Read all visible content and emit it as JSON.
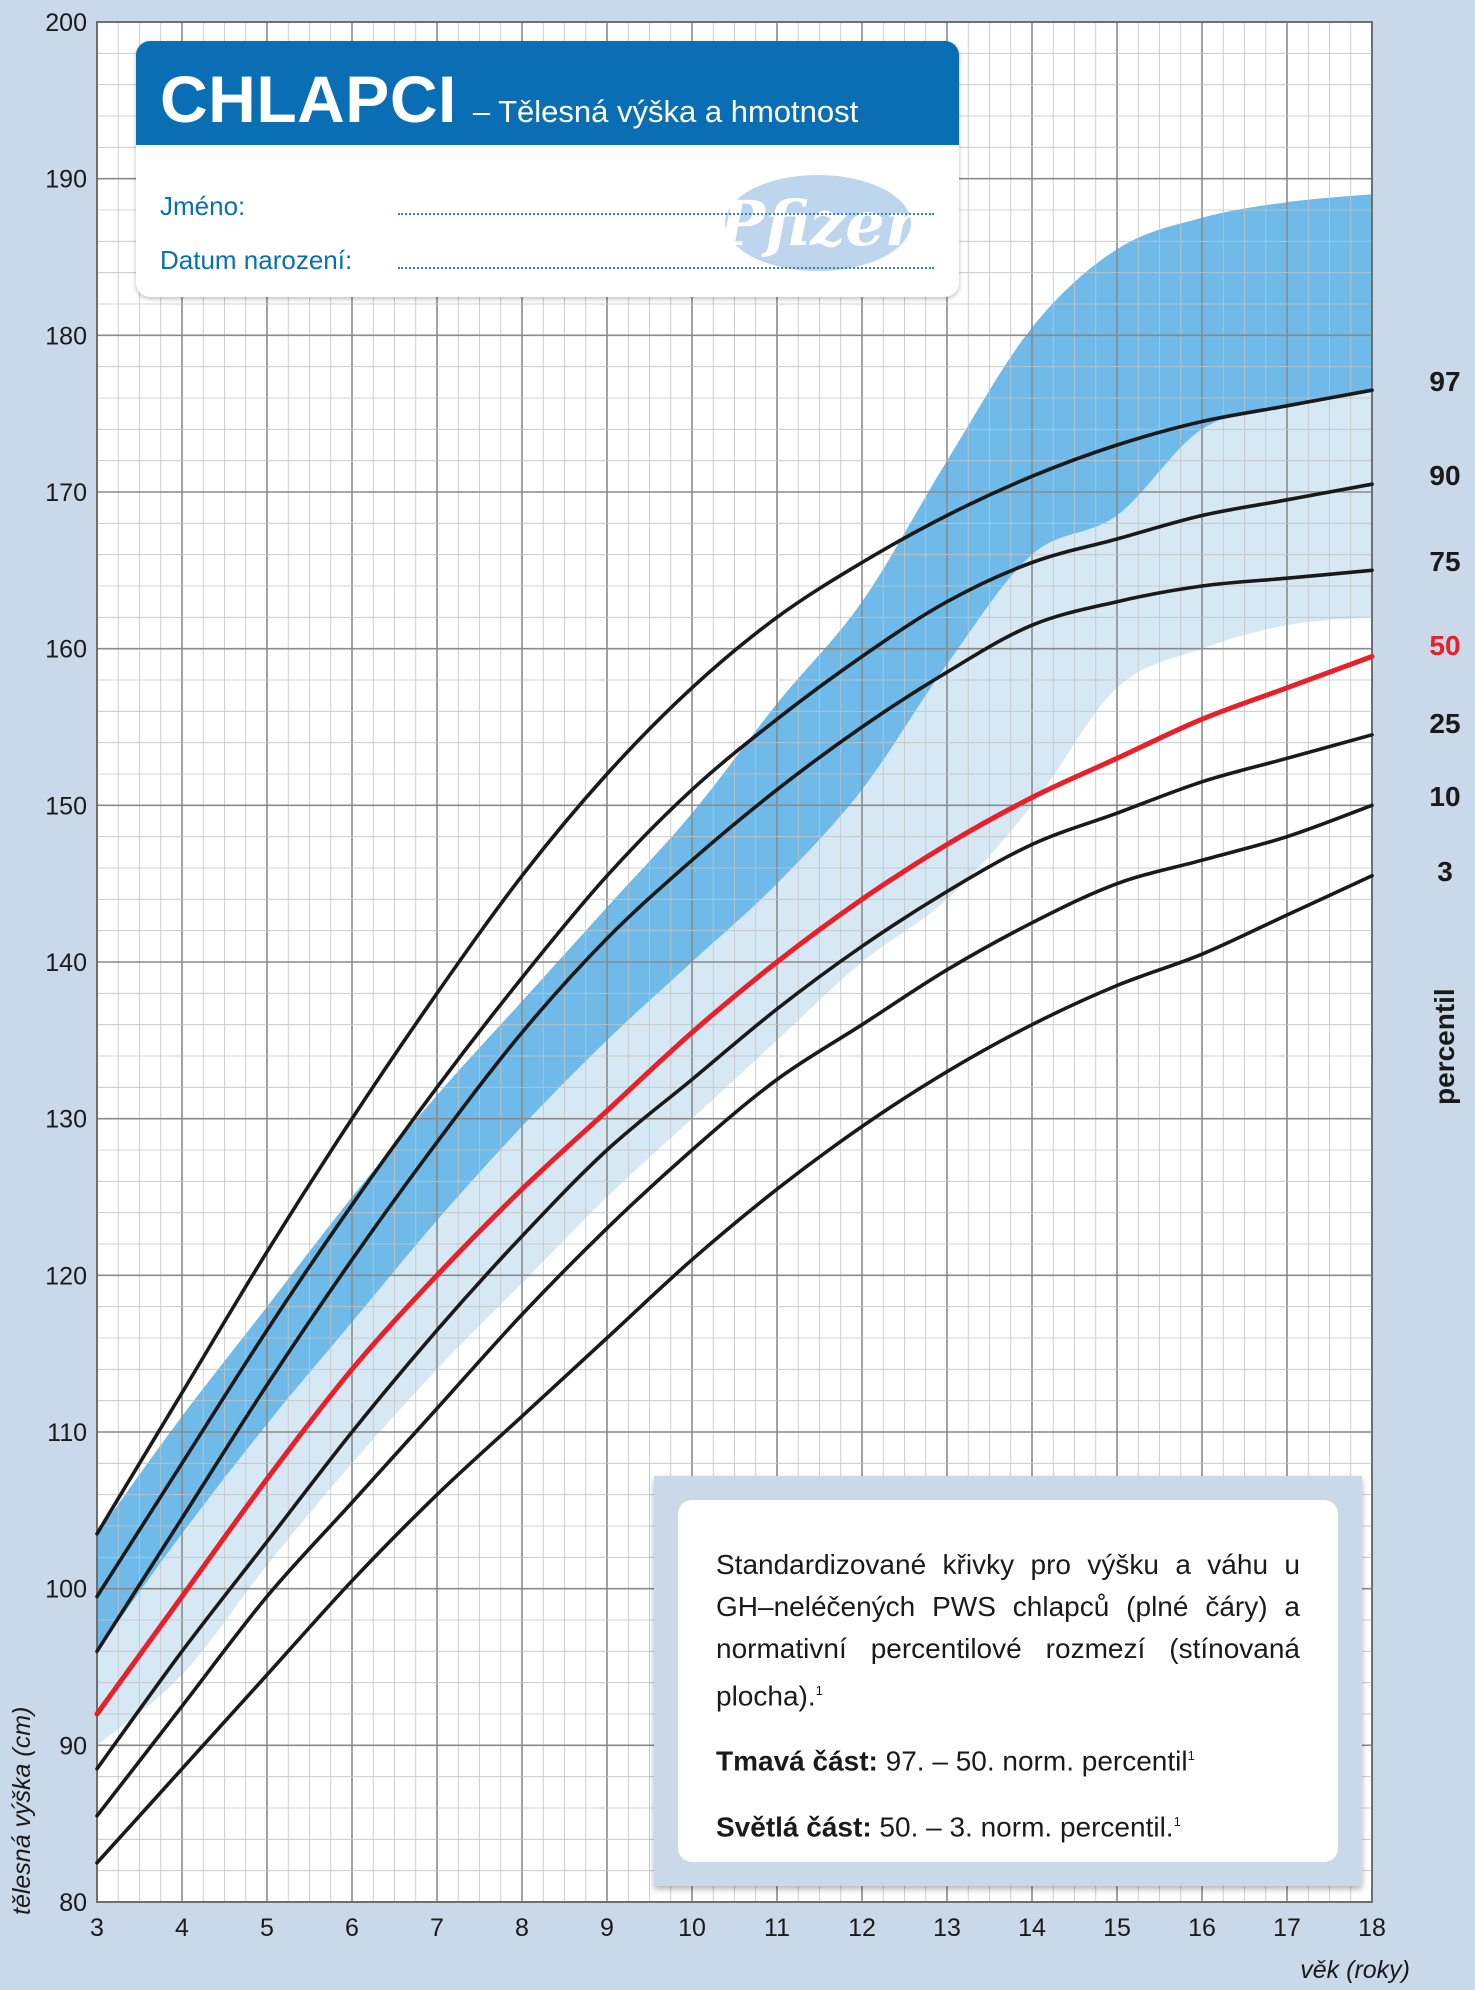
{
  "header": {
    "title": "CHLAPCI",
    "subtitle": "– Tělesná výška a hmotnost",
    "name_label": "Jméno:",
    "birth_label": "Datum narození:",
    "logo_text": "Pfizer"
  },
  "info": {
    "description": "Standardizované křivky pro výšku a váhu u GH–neléčených PWS chlapců (plné čáry) a normativní percentilové rozmezí (stínovaná plocha).",
    "description_ref": "1",
    "dark_label": "Tmavá část:",
    "dark_text": "97. – 50. norm. percentil",
    "dark_ref": "1",
    "light_label": "Světlá část:",
    "light_text": "50. – 3. norm. percentil.",
    "light_ref": "1"
  },
  "colors": {
    "dark_band": "#67b6e8",
    "light_band": "#d3e6f4",
    "median": "#e8202a",
    "curves": "#1a1a1a",
    "brand": "#0a6eb5"
  },
  "chart_data": {
    "type": "line",
    "xlabel": "věk (roky)",
    "ylabel": "tělesná výška (cm)",
    "xlim": [
      3,
      18
    ],
    "ylim": [
      80,
      200
    ],
    "x_ticks": [
      3,
      4,
      5,
      6,
      7,
      8,
      9,
      10,
      11,
      12,
      13,
      14,
      15,
      16,
      17,
      18
    ],
    "y_ticks": [
      80,
      90,
      100,
      110,
      120,
      130,
      140,
      150,
      160,
      170,
      180,
      190,
      200
    ],
    "legend_title": "percentil",
    "series": [
      {
        "name": "97",
        "x": [
          3,
          4,
          5,
          6,
          7,
          8,
          9,
          10,
          11,
          12,
          13,
          14,
          15,
          16,
          17,
          18
        ],
        "y": [
          103.5,
          112.5,
          121.5,
          130,
          138,
          145.5,
          152,
          157.5,
          162,
          165.5,
          168.5,
          171,
          173,
          174.5,
          175.5,
          176.5
        ]
      },
      {
        "name": "90",
        "x": [
          3,
          4,
          5,
          6,
          7,
          8,
          9,
          10,
          11,
          12,
          13,
          14,
          15,
          16,
          17,
          18
        ],
        "y": [
          99.5,
          108,
          116.5,
          124.5,
          132,
          139,
          145.5,
          151,
          155.5,
          159.5,
          163,
          165.5,
          167,
          168.5,
          169.5,
          170.5
        ]
      },
      {
        "name": "75",
        "x": [
          3,
          4,
          5,
          6,
          7,
          8,
          9,
          10,
          11,
          12,
          13,
          14,
          15,
          16,
          17,
          18
        ],
        "y": [
          96,
          104.5,
          113,
          121,
          128.5,
          135.5,
          141.5,
          146.5,
          151,
          155,
          158.5,
          161.5,
          163,
          164,
          164.5,
          165
        ]
      },
      {
        "name": "50",
        "x": [
          3,
          4,
          5,
          6,
          7,
          8,
          9,
          10,
          11,
          12,
          13,
          14,
          15,
          16,
          17,
          18
        ],
        "y": [
          92,
          99.5,
          107,
          114,
          120,
          125.5,
          130.5,
          135.5,
          140,
          144,
          147.5,
          150.5,
          153,
          155.5,
          157.5,
          159.5
        ]
      },
      {
        "name": "25",
        "x": [
          3,
          4,
          5,
          6,
          7,
          8,
          9,
          10,
          11,
          12,
          13,
          14,
          15,
          16,
          17,
          18
        ],
        "y": [
          88.5,
          96,
          103,
          110,
          116.5,
          122.5,
          128,
          132.5,
          137,
          141,
          144.5,
          147.5,
          149.5,
          151.5,
          153,
          154.5
        ]
      },
      {
        "name": "10",
        "x": [
          3,
          4,
          5,
          6,
          7,
          8,
          9,
          10,
          11,
          12,
          13,
          14,
          15,
          16,
          17,
          18
        ],
        "y": [
          85.5,
          92.5,
          99.5,
          105.5,
          111.5,
          117.5,
          123,
          128,
          132.5,
          136,
          139.5,
          142.5,
          145,
          146.5,
          148,
          150
        ]
      },
      {
        "name": "3",
        "x": [
          3,
          4,
          5,
          6,
          7,
          8,
          9,
          10,
          11,
          12,
          13,
          14,
          15,
          16,
          17,
          18
        ],
        "y": [
          82.5,
          88.5,
          94.5,
          100.5,
          106,
          111,
          116,
          121,
          125.5,
          129.5,
          133,
          136,
          138.5,
          140.5,
          143,
          145.5
        ]
      }
    ],
    "bands": [
      {
        "label": "Tmavá část",
        "x": [
          3,
          4,
          5,
          6,
          7,
          8,
          9,
          10,
          11,
          12,
          13,
          14,
          15,
          16,
          17,
          18
        ],
        "lower": [
          96,
          103.5,
          110.5,
          117,
          123.5,
          129.5,
          135,
          140,
          145,
          151,
          159,
          166,
          168.5,
          174,
          175.5,
          176.5
        ],
        "upper": [
          103.5,
          111,
          118,
          125,
          131.5,
          137.5,
          143.5,
          149.5,
          156.5,
          163,
          172,
          180.5,
          185.5,
          187.5,
          188.5,
          189
        ]
      },
      {
        "label": "Světlá část",
        "x": [
          3,
          4,
          5,
          6,
          7,
          8,
          9,
          10,
          11,
          12,
          13,
          14,
          15,
          16,
          17,
          18
        ],
        "lower": [
          90,
          94.5,
          101.5,
          108,
          114,
          119.5,
          125,
          130,
          135,
          140,
          144,
          150,
          157.5,
          160,
          161.5,
          162
        ],
        "upper": [
          96,
          103.5,
          110.5,
          117,
          123.5,
          129.5,
          135,
          140,
          145,
          151,
          159,
          166,
          168.5,
          174,
          175.5,
          176.5
        ]
      }
    ]
  }
}
